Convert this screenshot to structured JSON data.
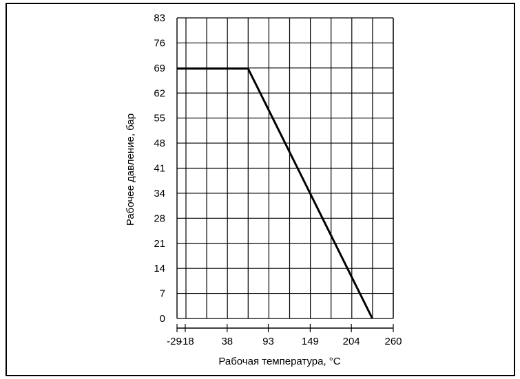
{
  "chart_data": {
    "type": "line",
    "title": "",
    "xlabel": "Рабочая температура, °С",
    "ylabel": "Рабочее давление, бар",
    "x_ticks": [
      {
        "label": "-29",
        "value": -29
      },
      {
        "label": "-18",
        "value": -18
      },
      {
        "label": "38",
        "value": 38
      },
      {
        "label": "93",
        "value": 93
      },
      {
        "label": "149",
        "value": 149
      },
      {
        "label": "204",
        "value": 204
      },
      {
        "label": "260",
        "value": 260
      }
    ],
    "y_ticks": [
      "0",
      "7",
      "14",
      "21",
      "28",
      "34",
      "41",
      "48",
      "55",
      "62",
      "69",
      "76",
      "83"
    ],
    "xlim": [
      -29,
      260
    ],
    "ylim": [
      0,
      83
    ],
    "grid": true,
    "series": [
      {
        "color": "#000000",
        "points": [
          {
            "x": -29,
            "y": 69
          },
          {
            "x": 66,
            "y": 69
          },
          {
            "x": 232,
            "y": 0
          }
        ]
      }
    ]
  }
}
